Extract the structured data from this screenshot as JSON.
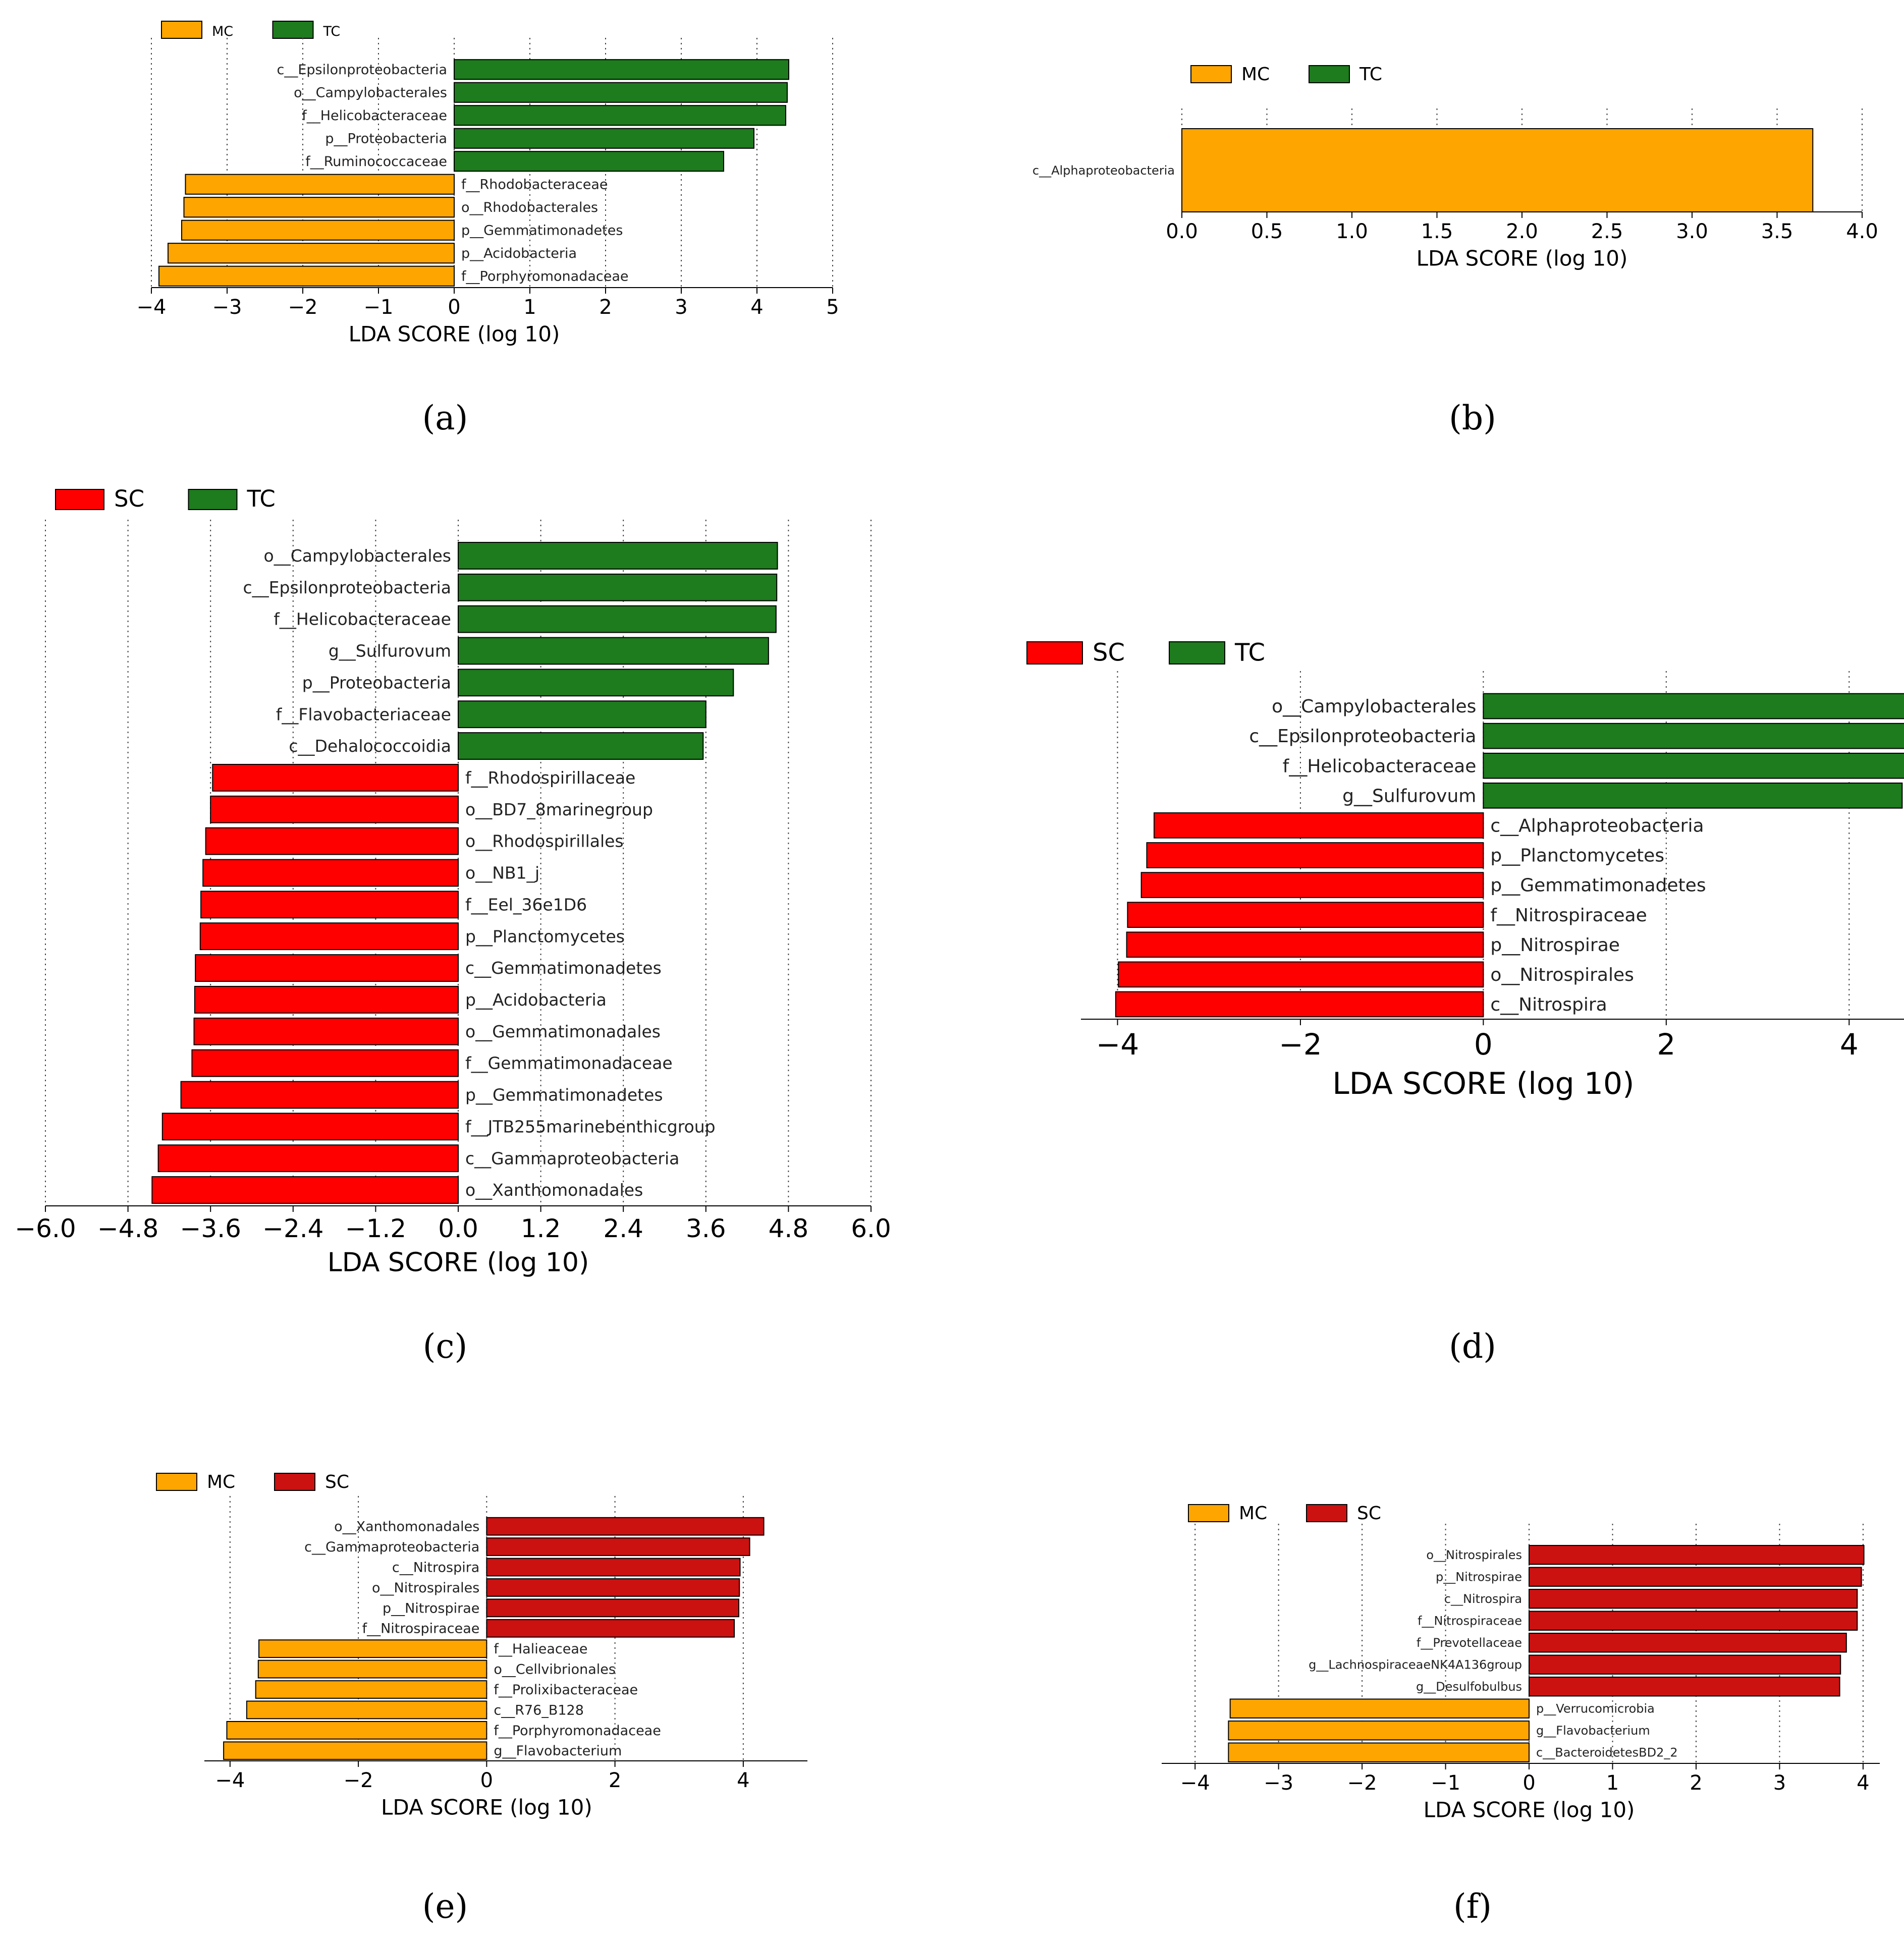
{
  "panel_labels": [
    "(a)",
    "(b)",
    "(c)",
    "(d)",
    "(e)",
    "(f)"
  ],
  "colors": {
    "MC": "#FFA500",
    "TC": "#1E7B1E",
    "SC": "#FF0000",
    "SC_dark": "#CC1111"
  },
  "chart_data": [
    {
      "type": "bar",
      "orientation": "horizontal",
      "xlabel": "LDA SCORE (log 10)",
      "xlim": [
        -4,
        5
      ],
      "xticks": [
        -4,
        -3,
        -2,
        -1,
        0,
        1,
        2,
        3,
        4,
        5
      ],
      "xtick_labels": [
        "−4",
        "−3",
        "−2",
        "−1",
        "0",
        "1",
        "2",
        "3",
        "4",
        "5"
      ],
      "legend": [
        {
          "name": "MC",
          "color": "#FFA500"
        },
        {
          "name": "TC",
          "color": "#1E7B1E"
        }
      ],
      "bars": [
        {
          "label": "c__Epsilonproteobacteria",
          "value": 4.42,
          "group": "TC"
        },
        {
          "label": "o__Campylobacterales",
          "value": 4.4,
          "group": "TC"
        },
        {
          "label": "f__Helicobacteraceae",
          "value": 4.38,
          "group": "TC"
        },
        {
          "label": "p__Proteobacteria",
          "value": 3.96,
          "group": "TC"
        },
        {
          "label": "f__Ruminococcaceae",
          "value": 3.56,
          "group": "TC"
        },
        {
          "label": "f__Rhodobacteraceae",
          "value": -3.55,
          "group": "MC"
        },
        {
          "label": "o__Rhodobacterales",
          "value": -3.57,
          "group": "MC"
        },
        {
          "label": "p__Gemmatimonadetes",
          "value": -3.6,
          "group": "MC"
        },
        {
          "label": "p__Acidobacteria",
          "value": -3.78,
          "group": "MC"
        },
        {
          "label": "f__Porphyromonadaceae",
          "value": -3.9,
          "group": "MC"
        }
      ]
    },
    {
      "type": "bar",
      "orientation": "horizontal",
      "xlabel": "LDA SCORE (log 10)",
      "xlim": [
        0,
        4.0
      ],
      "xticks": [
        0,
        0.5,
        1.0,
        1.5,
        2.0,
        2.5,
        3.0,
        3.5,
        4.0
      ],
      "xtick_labels": [
        "0.0",
        "0.5",
        "1.0",
        "1.5",
        "2.0",
        "2.5",
        "3.0",
        "3.5",
        "4.0"
      ],
      "legend": [
        {
          "name": "MC",
          "color": "#FFA500"
        },
        {
          "name": "TC",
          "color": "#1E7B1E"
        }
      ],
      "bars": [
        {
          "label": "c__Alphaproteobacteria",
          "value": 3.71,
          "group": "MC"
        }
      ]
    },
    {
      "type": "bar",
      "orientation": "horizontal",
      "xlabel": "LDA SCORE (log 10)",
      "xlim": [
        -6.0,
        6.0
      ],
      "xticks": [
        -6.0,
        -4.8,
        -3.6,
        -2.4,
        -1.2,
        0.0,
        1.2,
        2.4,
        3.6,
        4.8,
        6.0
      ],
      "xtick_labels": [
        "−6.0",
        "−4.8",
        "−3.6",
        "−2.4",
        "−1.2",
        "0.0",
        "1.2",
        "2.4",
        "3.6",
        "4.8",
        "6.0"
      ],
      "legend": [
        {
          "name": "SC",
          "color": "#FF0000"
        },
        {
          "name": "TC",
          "color": "#1E7B1E"
        }
      ],
      "bars": [
        {
          "label": "o__Campylobacterales",
          "value": 4.64,
          "group": "TC"
        },
        {
          "label": "c__Epsilonproteobacteria",
          "value": 4.63,
          "group": "TC"
        },
        {
          "label": "f__Helicobacteraceae",
          "value": 4.62,
          "group": "TC"
        },
        {
          "label": "g__Sulfurovum",
          "value": 4.51,
          "group": "TC"
        },
        {
          "label": "p__Proteobacteria",
          "value": 4.0,
          "group": "TC"
        },
        {
          "label": "f__Flavobacteriaceae",
          "value": 3.6,
          "group": "TC"
        },
        {
          "label": "c__Dehalococcoidia",
          "value": 3.56,
          "group": "TC"
        },
        {
          "label": "f__Rhodospirillaceae",
          "value": -3.57,
          "group": "SC"
        },
        {
          "label": "o__BD7_8marinegroup",
          "value": -3.6,
          "group": "SC"
        },
        {
          "label": "o__Rhodospirillales",
          "value": -3.67,
          "group": "SC"
        },
        {
          "label": "o__NB1_j",
          "value": -3.71,
          "group": "SC"
        },
        {
          "label": "f__Eel_36e1D6",
          "value": -3.74,
          "group": "SC"
        },
        {
          "label": "p__Planctomycetes",
          "value": -3.75,
          "group": "SC"
        },
        {
          "label": "c__Gemmatimonadetes",
          "value": -3.82,
          "group": "SC"
        },
        {
          "label": "p__Acidobacteria",
          "value": -3.83,
          "group": "SC"
        },
        {
          "label": "o__Gemmatimonadales",
          "value": -3.84,
          "group": "SC"
        },
        {
          "label": "f__Gemmatimonadaceae",
          "value": -3.87,
          "group": "SC"
        },
        {
          "label": "p__Gemmatimonadetes",
          "value": -4.03,
          "group": "SC"
        },
        {
          "label": "f__JTB255marinebenthicgroup",
          "value": -4.3,
          "group": "SC"
        },
        {
          "label": "c__Gammaproteobacteria",
          "value": -4.36,
          "group": "SC"
        },
        {
          "label": "o__Xanthomonadales",
          "value": -4.45,
          "group": "SC"
        }
      ]
    },
    {
      "type": "bar",
      "orientation": "horizontal",
      "xlabel": "LDA SCORE (log 10)",
      "xlim": [
        -4.4,
        4.6
      ],
      "xticks": [
        -4,
        -2,
        0,
        2,
        4
      ],
      "xtick_labels": [
        "−4",
        "−2",
        "0",
        "2",
        "4"
      ],
      "legend": [
        {
          "name": "SC",
          "color": "#FF0000"
        },
        {
          "name": "TC",
          "color": "#1E7B1E"
        }
      ],
      "bars": [
        {
          "label": "o__Campylobacterales",
          "value": 4.63,
          "group": "TC"
        },
        {
          "label": "c__Epsilonproteobacteria",
          "value": 4.62,
          "group": "TC"
        },
        {
          "label": "f__Helicobacteraceae",
          "value": 4.61,
          "group": "TC"
        },
        {
          "label": "g__Sulfurovum",
          "value": 4.58,
          "group": "TC"
        },
        {
          "label": "c__Alphaproteobacteria",
          "value": -3.6,
          "group": "SC"
        },
        {
          "label": "p__Planctomycetes",
          "value": -3.68,
          "group": "SC"
        },
        {
          "label": "p__Gemmatimonadetes",
          "value": -3.74,
          "group": "SC"
        },
        {
          "label": "f__Nitrospiraceae",
          "value": -3.89,
          "group": "SC"
        },
        {
          "label": "p__Nitrospirae",
          "value": -3.9,
          "group": "SC"
        },
        {
          "label": "o__Nitrospirales",
          "value": -3.99,
          "group": "SC"
        },
        {
          "label": "c__Nitrospira",
          "value": -4.02,
          "group": "SC"
        }
      ]
    },
    {
      "type": "bar",
      "orientation": "horizontal",
      "xlabel": "LDA SCORE (log 10)",
      "xlim": [
        -4.4,
        5.0
      ],
      "xticks": [
        -4,
        -2,
        0,
        2,
        4
      ],
      "xtick_labels": [
        "−4",
        "−2",
        "0",
        "2",
        "4"
      ],
      "legend": [
        {
          "name": "MC",
          "color": "#FFA500"
        },
        {
          "name": "SC",
          "color": "#CC1111"
        }
      ],
      "bars": [
        {
          "label": "o__Xanthomonadales",
          "value": 4.32,
          "group": "SC"
        },
        {
          "label": "c__Gammaproteobacteria",
          "value": 4.1,
          "group": "SC"
        },
        {
          "label": "c__Nitrospira",
          "value": 3.95,
          "group": "SC"
        },
        {
          "label": "o__Nitrospirales",
          "value": 3.94,
          "group": "SC"
        },
        {
          "label": "p__Nitrospirae",
          "value": 3.93,
          "group": "SC"
        },
        {
          "label": "f__Nitrospiraceae",
          "value": 3.86,
          "group": "SC"
        },
        {
          "label": "f__Halieaceae",
          "value": -3.55,
          "group": "MC"
        },
        {
          "label": "o__Cellvibrionales",
          "value": -3.56,
          "group": "MC"
        },
        {
          "label": "f__Prolixibacteraceae",
          "value": -3.6,
          "group": "MC"
        },
        {
          "label": "c__R76_B128",
          "value": -3.74,
          "group": "MC"
        },
        {
          "label": "f__Porphyromonadaceae",
          "value": -4.05,
          "group": "MC"
        },
        {
          "label": "g__Flavobacterium",
          "value": -4.1,
          "group": "MC"
        }
      ]
    },
    {
      "type": "bar",
      "orientation": "horizontal",
      "xlabel": "LDA SCORE (log 10)",
      "xlim": [
        -4.4,
        4.2
      ],
      "xticks": [
        -4,
        -3,
        -2,
        -1,
        0,
        1,
        2,
        3,
        4
      ],
      "xtick_labels": [
        "−4",
        "−3",
        "−2",
        "−1",
        "0",
        "1",
        "2",
        "3",
        "4"
      ],
      "legend": [
        {
          "name": "MC",
          "color": "#FFA500"
        },
        {
          "name": "SC",
          "color": "#CC1111"
        }
      ],
      "bars": [
        {
          "label": "o__Nitrospirales",
          "value": 4.01,
          "group": "SC"
        },
        {
          "label": "p__Nitrospirae",
          "value": 3.98,
          "group": "SC"
        },
        {
          "label": "c__Nitrospira",
          "value": 3.93,
          "group": "SC"
        },
        {
          "label": "f__Nitrospiraceae",
          "value": 3.93,
          "group": "SC"
        },
        {
          "label": "f__Prevotellaceae",
          "value": 3.8,
          "group": "SC"
        },
        {
          "label": "g__LachnospiraceaeNK4A136group",
          "value": 3.73,
          "group": "SC"
        },
        {
          "label": "g__Desulfobulbus",
          "value": 3.72,
          "group": "SC"
        },
        {
          "label": "p__Verrucomicrobia",
          "value": -3.58,
          "group": "MC"
        },
        {
          "label": "g__Flavobacterium",
          "value": -3.6,
          "group": "MC"
        },
        {
          "label": "c__BacteroidetesBD2_2",
          "value": -3.6,
          "group": "MC"
        }
      ]
    }
  ]
}
